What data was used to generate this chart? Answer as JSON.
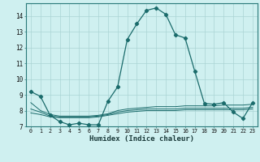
{
  "xlabel": "Humidex (Indice chaleur)",
  "background_color": "#cff0f0",
  "grid_color": "#aad4d4",
  "line_color": "#1a6b6b",
  "x_values": [
    0,
    1,
    2,
    3,
    4,
    5,
    6,
    7,
    8,
    9,
    10,
    11,
    12,
    13,
    14,
    15,
    16,
    17,
    18,
    19,
    20,
    21,
    22,
    23
  ],
  "series": [
    [
      9.2,
      8.9,
      7.7,
      7.3,
      7.1,
      7.2,
      7.1,
      7.1,
      8.6,
      9.5,
      12.5,
      13.5,
      14.35,
      14.5,
      14.1,
      12.8,
      12.6,
      10.5,
      8.45,
      8.4,
      8.5,
      7.9,
      7.5,
      8.5
    ],
    [
      8.5,
      8.0,
      7.75,
      7.65,
      7.65,
      7.65,
      7.65,
      7.7,
      7.8,
      8.0,
      8.1,
      8.15,
      8.2,
      8.25,
      8.25,
      8.25,
      8.3,
      8.3,
      8.3,
      8.3,
      8.35,
      8.35,
      8.35,
      8.4
    ],
    [
      8.1,
      7.9,
      7.65,
      7.6,
      7.6,
      7.6,
      7.6,
      7.65,
      7.75,
      7.9,
      8.0,
      8.05,
      8.1,
      8.1,
      8.1,
      8.1,
      8.15,
      8.15,
      8.15,
      8.15,
      8.15,
      8.15,
      8.15,
      8.2
    ],
    [
      7.85,
      7.75,
      7.6,
      7.55,
      7.55,
      7.55,
      7.55,
      7.6,
      7.7,
      7.8,
      7.9,
      7.95,
      8.0,
      8.0,
      8.0,
      8.0,
      8.05,
      8.05,
      8.05,
      8.05,
      8.05,
      8.05,
      8.05,
      8.1
    ]
  ],
  "ylim": [
    7,
    14.8
  ],
  "xlim": [
    -0.5,
    23.5
  ],
  "yticks": [
    7,
    8,
    9,
    10,
    11,
    12,
    13,
    14
  ],
  "xtick_labels": [
    "0",
    "1",
    "2",
    "3",
    "4",
    "5",
    "6",
    "7",
    "8",
    "9",
    "10",
    "11",
    "12",
    "13",
    "14",
    "15",
    "16",
    "17",
    "18",
    "19",
    "20",
    "21",
    "22",
    "23"
  ]
}
